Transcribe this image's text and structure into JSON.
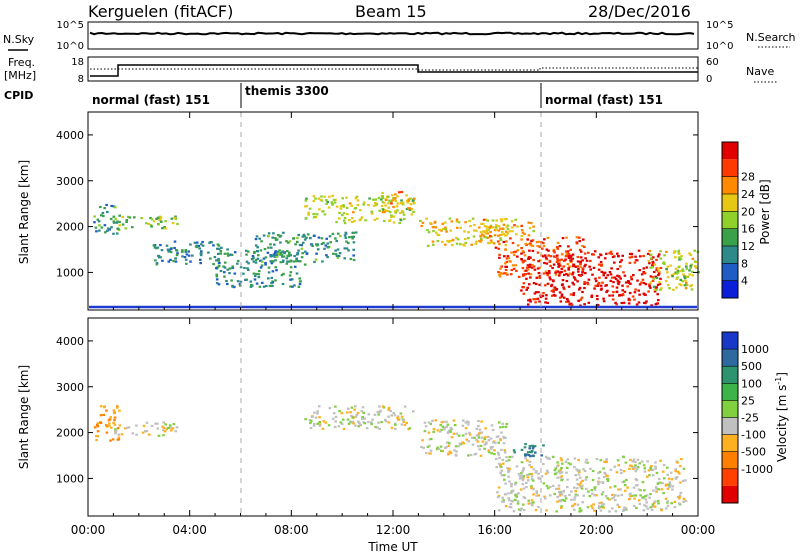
{
  "header": {
    "station": "Kerguelen (fitACF)",
    "beam": "Beam 15",
    "date": "28/Dec/2016"
  },
  "noise_panel": {
    "left_label": "N.Sky",
    "right_label": "N.Search",
    "left_ticks": [
      "10^5",
      "10^0"
    ],
    "right_ticks": [
      "10^5",
      "10^0"
    ]
  },
  "freq_panel": {
    "left_label_1": "Freq.",
    "left_label_2": "[MHz]",
    "right_label": "Nave",
    "left_ticks": [
      "18",
      "8"
    ],
    "right_ticks": [
      "60",
      "0"
    ]
  },
  "cpid": {
    "label": "CPID",
    "segments": [
      {
        "name": "normal (fast) 151",
        "start_h": 0
      },
      {
        "name": "themis 3300",
        "start_h": 6
      },
      {
        "name": "normal (fast) 151",
        "start_h": 18
      }
    ]
  },
  "power_panel": {
    "ylabel": "Slant Range [km]",
    "yticks": [
      "1000",
      "2000",
      "3000",
      "4000"
    ],
    "colorbar_label": "Power [dB]",
    "colorbar_ticks": [
      "4",
      "8",
      "12",
      "16",
      "20",
      "24",
      "28"
    ],
    "colors": [
      "#0b1ed8",
      "#1f5cc4",
      "#2e8a8a",
      "#3aa04a",
      "#8fd02a",
      "#e6c814",
      "#ff8a00",
      "#ff3a00",
      "#e00000"
    ]
  },
  "velocity_panel": {
    "ylabel": "Slant Range [km]",
    "yticks": [
      "1000",
      "2000",
      "3000",
      "4000"
    ],
    "colorbar_label": "Velocity [m s-1]",
    "colorbar_label_main": "Velocity [m s",
    "colorbar_label_exp": "-1",
    "colorbar_label_end": "]",
    "colorbar_ticks": [
      "1000",
      "500",
      "100",
      "25",
      "-25",
      "-100",
      "-500",
      "-1000"
    ],
    "colors": [
      "#1838c8",
      "#2e6aa0",
      "#2e9470",
      "#3cb44a",
      "#80d040",
      "#c0c0c0",
      "#ffb020",
      "#ff8000",
      "#ff4000",
      "#e00000"
    ]
  },
  "xaxis": {
    "label": "Time UT",
    "ticks": [
      "00:00",
      "04:00",
      "08:00",
      "12:00",
      "16:00",
      "20:00",
      "00:00"
    ]
  },
  "chart_data": {
    "type": "heatmap",
    "x_range_hours": [
      0,
      24
    ],
    "y_range_km": [
      180,
      4500
    ],
    "grid": false,
    "power_patches": [
      {
        "t": [
          0.2,
          1.2
        ],
        "r": [
          1850,
          2500
        ],
        "db": 10
      },
      {
        "t": [
          1.0,
          3.5
        ],
        "r": [
          1950,
          2250
        ],
        "db": 14
      },
      {
        "t": [
          2.5,
          5.5
        ],
        "r": [
          1200,
          1700
        ],
        "db": 8
      },
      {
        "t": [
          5.0,
          8.5
        ],
        "r": [
          700,
          1500
        ],
        "db": 9
      },
      {
        "t": [
          6.5,
          10.5
        ],
        "r": [
          1250,
          1900
        ],
        "db": 10
      },
      {
        "t": [
          8.5,
          12.8
        ],
        "r": [
          2100,
          2700
        ],
        "db": 16
      },
      {
        "t": [
          11.5,
          12.8
        ],
        "r": [
          2300,
          2800
        ],
        "db": 20
      },
      {
        "t": [
          13.0,
          16.5
        ],
        "r": [
          1600,
          2200
        ],
        "db": 18
      },
      {
        "t": [
          15.5,
          17.5
        ],
        "r": [
          1800,
          2200
        ],
        "db": 20
      },
      {
        "t": [
          16.0,
          19.5
        ],
        "r": [
          900,
          1800
        ],
        "db": 24
      },
      {
        "t": [
          17.0,
          22.5
        ],
        "r": [
          300,
          1500
        ],
        "db": 28
      },
      {
        "t": [
          22.0,
          24.0
        ],
        "r": [
          600,
          1500
        ],
        "db": 16
      }
    ],
    "velocity_patches": [
      {
        "t": [
          0.2,
          1.2
        ],
        "r": [
          1850,
          2600
        ],
        "v": -100
      },
      {
        "t": [
          1.0,
          3.5
        ],
        "r": [
          1950,
          2250
        ],
        "v": 0
      },
      {
        "t": [
          8.5,
          12.8
        ],
        "r": [
          2100,
          2600
        ],
        "v": 0
      },
      {
        "t": [
          13.0,
          16.5
        ],
        "r": [
          1500,
          2300
        ],
        "v": 0
      },
      {
        "t": [
          16.0,
          23.5
        ],
        "r": [
          300,
          1500
        ],
        "v": 0
      },
      {
        "t": [
          16.5,
          18.0
        ],
        "r": [
          1500,
          1800
        ],
        "v": 300
      }
    ]
  }
}
